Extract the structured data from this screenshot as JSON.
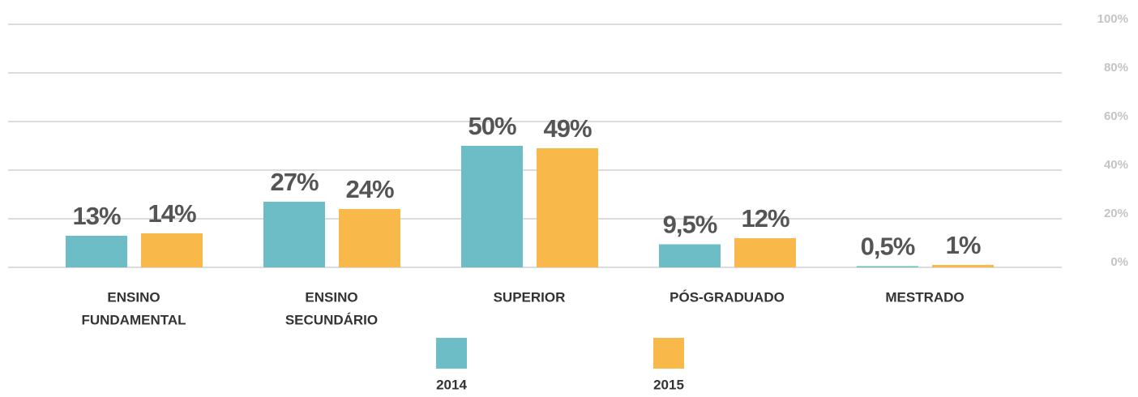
{
  "chart_data": {
    "type": "bar",
    "categories": [
      [
        "ENSINO",
        "FUNDAMENTAL"
      ],
      [
        "ENSINO",
        "SECUNDÁRIO"
      ],
      [
        "SUPERIOR"
      ],
      [
        "PÓS-GRADUADO"
      ],
      [
        "MESTRADO"
      ]
    ],
    "series": [
      {
        "name": "2014",
        "color": "#6dbdc6",
        "values": [
          13,
          27,
          50,
          9.5,
          0.5
        ],
        "value_labels": [
          "13%",
          "27%",
          "50%",
          "9,5%",
          "0,5%"
        ]
      },
      {
        "name": "2015",
        "color": "#f8b84a",
        "values": [
          14,
          24,
          49,
          12,
          1
        ],
        "value_labels": [
          "14%",
          "24%",
          "49%",
          "12%",
          "1%"
        ]
      }
    ],
    "ylim": [
      0,
      100
    ],
    "yticks": [
      {
        "value": 0,
        "label": "0%"
      },
      {
        "value": 20,
        "label": "20%"
      },
      {
        "value": 40,
        "label": "40%"
      },
      {
        "value": 60,
        "label": "60%"
      },
      {
        "value": 80,
        "label": "80%"
      },
      {
        "value": 100,
        "label": "100%"
      }
    ],
    "grid": true
  }
}
